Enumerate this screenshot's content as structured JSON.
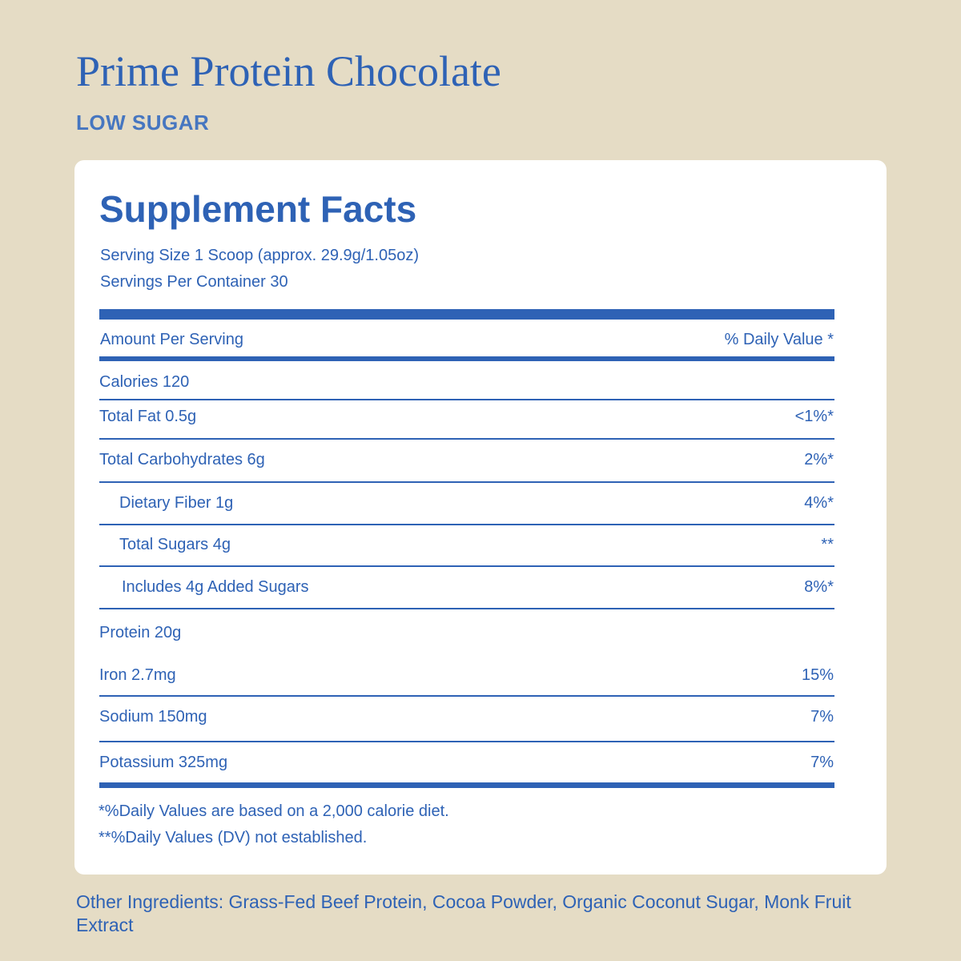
{
  "header": {
    "title": "Prime Protein Chocolate",
    "subtitle": "LOW SUGAR"
  },
  "facts": {
    "title": "Supplement Facts",
    "serving_size": "Serving Size 1 Scoop (approx. 29.9g/1.05oz)",
    "servings_per_container": "Servings Per Container 30",
    "amount_header": "Amount Per Serving",
    "dv_header": "% Daily Value *",
    "rows": [
      {
        "label": "Calories 120"
      },
      {
        "label": "Total Fat 0.5g",
        "dv": "<1%*"
      },
      {
        "label": "Total Carbohydrates 6g",
        "dv": "2%*"
      },
      {
        "label": "Dietary Fiber 1g",
        "dv": "4%*",
        "indent": 1
      },
      {
        "label": "Total Sugars 4g",
        "dv": "**",
        "indent": 1
      },
      {
        "label": "Includes 4g Added Sugars",
        "dv": "8%*",
        "indent": 1
      },
      {
        "label": "Protein 20g"
      },
      {
        "label": "Iron 2.7mg",
        "dv": "15%"
      },
      {
        "label": "Sodium 150mg",
        "dv": "7%"
      },
      {
        "label": "Potassium 325mg",
        "dv": "7%"
      }
    ],
    "footnotes": [
      "*%Daily Values are based on a 2,000 calorie diet.",
      "**%Daily Values (DV) not established."
    ]
  },
  "other_ingredients": "Other Ingredients: Grass-Fed Beef Protein, Cocoa Powder, Organic Coconut Sugar, Monk Fruit Extract"
}
